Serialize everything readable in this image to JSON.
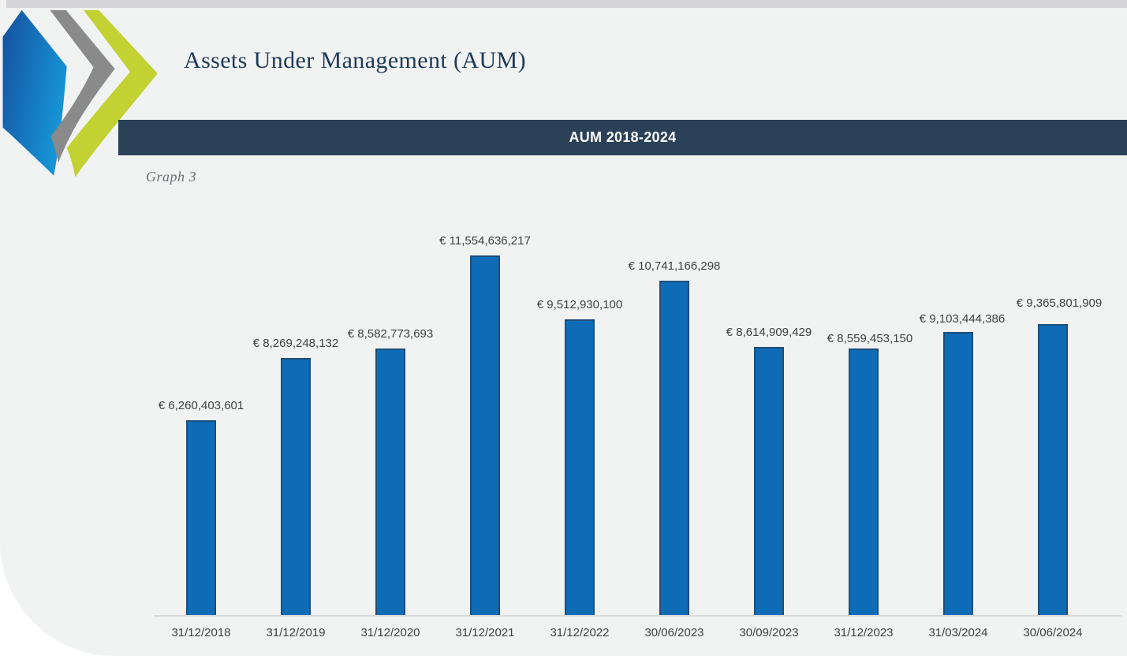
{
  "page": {
    "title": "Assets Under Management (AUM)",
    "caption": "Graph 3"
  },
  "banner": {
    "label": "AUM 2018-2024"
  },
  "logo": {
    "icon": "triple-chevron-arrows-logo"
  },
  "theme": {
    "background": "#f1f2f2",
    "top_strip": "#d5d5d9",
    "title_color": "#1e3a56",
    "banner_bg": "#2a4157",
    "bar_fill": "#0d6cb5",
    "bar_border": "#1f4e79",
    "label_color": "#404040",
    "axis_color": "#d9d9d9",
    "logo_blue_dark": "#15509f",
    "logo_blue_light": "#1695d6",
    "logo_gray": "#8a8a8a",
    "logo_green": "#c1d232"
  },
  "chart_data": {
    "type": "bar",
    "title": "AUM 2018-2024",
    "currency": "EUR",
    "categories": [
      "31/12/2018",
      "31/12/2019",
      "31/12/2020",
      "31/12/2021",
      "31/12/2022",
      "30/06/2023",
      "30/09/2023",
      "31/12/2023",
      "31/03/2024",
      "30/06/2024"
    ],
    "values": [
      6260403601,
      8269248132,
      8582773693,
      11554636217,
      9512930100,
      10741166298,
      8614909429,
      8559453150,
      9103444386,
      9365801909
    ],
    "value_labels": [
      "€ 6,260,403,601",
      "€ 8,269,248,132",
      "€ 8,582,773,693",
      "€ 11,554,636,217",
      "€ 9,512,930,100",
      "€ 10,741,166,298",
      "€ 8,614,909,429",
      "€ 8,559,453,150",
      "€ 9,103,444,386",
      "€ 9,365,801,909"
    ],
    "xlabel": "",
    "ylabel": "",
    "ylim": [
      0,
      11554636217
    ],
    "grid": false,
    "legend": false,
    "data_label_position": "outside-end"
  }
}
